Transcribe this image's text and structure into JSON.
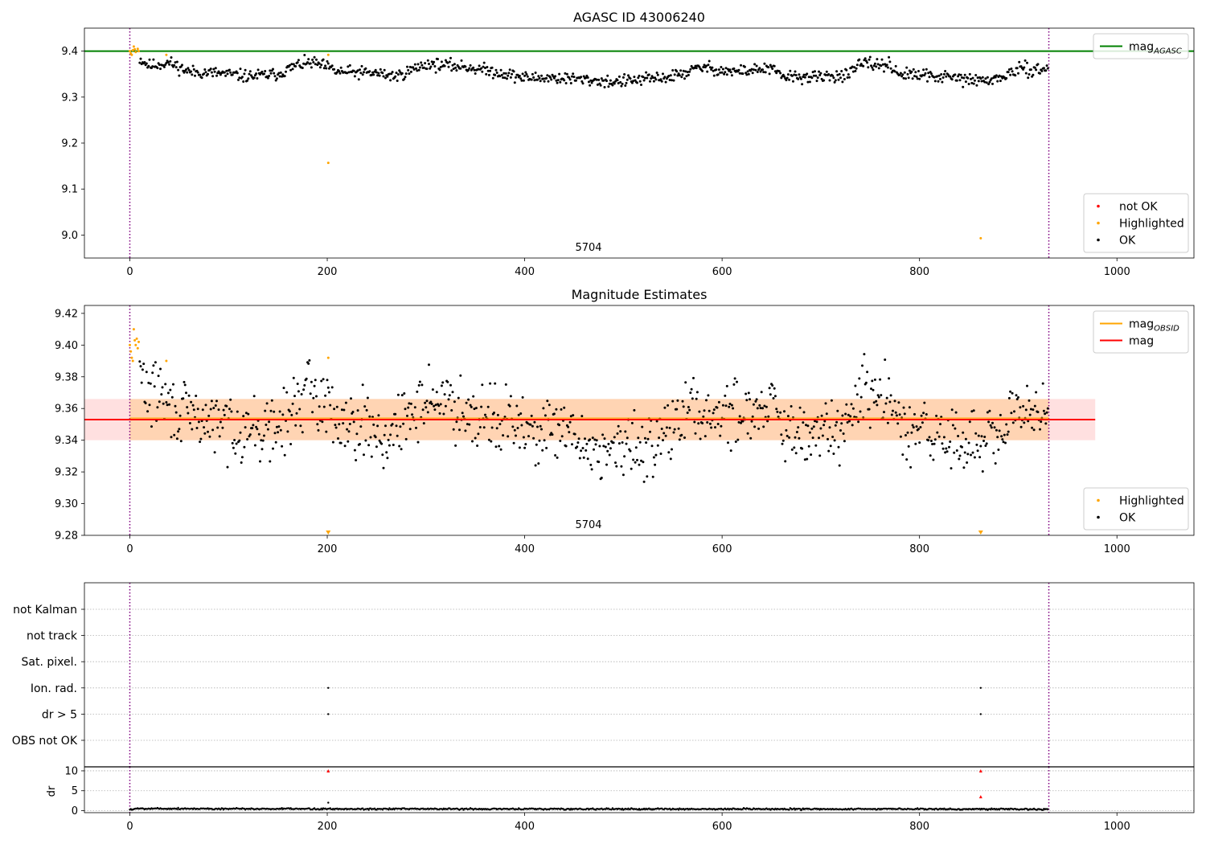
{
  "chart_data": [
    {
      "type": "scatter",
      "title": "AGASC ID 43006240",
      "xlim": [
        -46,
        1078
      ],
      "ylim": [
        8.95,
        9.45
      ],
      "xticks": [
        0,
        200,
        400,
        600,
        800,
        1000
      ],
      "yticks": [
        9.0,
        9.1,
        9.2,
        9.3,
        9.4
      ],
      "ytick_labels": [
        "9.0",
        "9.1",
        "9.2",
        "9.3",
        "9.4"
      ],
      "hlines": [
        {
          "name": "mag_AGASC",
          "y": 9.4,
          "color": "#008000"
        }
      ],
      "vlines": [
        0,
        931
      ],
      "annotation": "5704",
      "legends": [
        {
          "position": "upper right",
          "entries": [
            {
              "label": "mag",
              "sub": "AGASC",
              "kind": "line",
              "color": "#008000"
            }
          ]
        },
        {
          "position": "lower right",
          "entries": [
            {
              "label": "not OK",
              "kind": "point",
              "color": "#ff0000"
            },
            {
              "label": "Highlighted",
              "kind": "point",
              "color": "#ffa500"
            },
            {
              "label": "OK",
              "kind": "point",
              "color": "#000000"
            }
          ]
        }
      ],
      "series": [
        {
          "name": "Highlighted",
          "color": "#ffa500",
          "points": [
            [
              0,
              9.4
            ],
            [
              1,
              9.395
            ],
            [
              2,
              9.392
            ],
            [
              3,
              9.402
            ],
            [
              4,
              9.41
            ],
            [
              5,
              9.404
            ],
            [
              6,
              9.398
            ],
            [
              8,
              9.405
            ],
            [
              9,
              9.4
            ],
            [
              37,
              9.392
            ],
            [
              201,
              9.392
            ],
            [
              201,
              9.157
            ],
            [
              862,
              8.993
            ]
          ]
        },
        {
          "name": "OK",
          "color": "#000000",
          "segments": [
            {
              "from": 10,
              "to": 930,
              "step": 1,
              "knots": [
                [
                  10,
                  9.383
                ],
                [
                  20,
                  9.368
                ],
                [
                  40,
                  9.375
                ],
                [
                  60,
                  9.355
                ],
                [
                  90,
                  9.352
                ],
                [
                  120,
                  9.345
                ],
                [
                  150,
                  9.35
                ],
                [
                  170,
                  9.37
                ],
                [
                  185,
                  9.375
                ],
                [
                  200,
                  9.365
                ],
                [
                  210,
                  9.355
                ],
                [
                  250,
                  9.352
                ],
                [
                  270,
                  9.345
                ],
                [
                  300,
                  9.372
                ],
                [
                  340,
                  9.366
                ],
                [
                  370,
                  9.355
                ],
                [
                  400,
                  9.342
                ],
                [
                  430,
                  9.342
                ],
                [
                  460,
                  9.338
                ],
                [
                  490,
                  9.333
                ],
                [
                  520,
                  9.338
                ],
                [
                  550,
                  9.345
                ],
                [
                  580,
                  9.365
                ],
                [
                  610,
                  9.355
                ],
                [
                  650,
                  9.362
                ],
                [
                  660,
                  9.345
                ],
                [
                  700,
                  9.343
                ],
                [
                  730,
                  9.35
                ],
                [
                  740,
                  9.372
                ],
                [
                  770,
                  9.37
                ],
                [
                  780,
                  9.35
                ],
                [
                  830,
                  9.343
                ],
                [
                  860,
                  9.335
                ],
                [
                  880,
                  9.34
                ],
                [
                  900,
                  9.36
                ],
                [
                  930,
                  9.36
                ]
              ],
              "jitter": 0.01,
              "seed": 11
            }
          ]
        }
      ]
    },
    {
      "type": "scatter",
      "title": "Magnitude Estimates",
      "xlim": [
        -46,
        1078
      ],
      "ylim": [
        9.28,
        9.425
      ],
      "xticks": [
        0,
        200,
        400,
        600,
        800,
        1000
      ],
      "yticks": [
        9.28,
        9.3,
        9.32,
        9.34,
        9.36,
        9.38,
        9.4,
        9.42
      ],
      "ytick_labels": [
        "9.28",
        "9.30",
        "9.32",
        "9.34",
        "9.36",
        "9.38",
        "9.40",
        "9.42"
      ],
      "hlines": [
        {
          "name": "mag",
          "y": 9.353,
          "color": "#ff0000"
        }
      ],
      "bands": [
        {
          "x0": -46,
          "x1": 978,
          "y0": 9.34,
          "y1": 9.366,
          "color": "#ff0000",
          "opacity": 0.12
        },
        {
          "x0": 0,
          "x1": 931,
          "y0": 9.34,
          "y1": 9.366,
          "color": "#ffa500",
          "opacity": 0.2
        }
      ],
      "obsid_line": {
        "name": "mag_OBSID",
        "y": 9.354,
        "x0": 0,
        "x1": 931,
        "color": "#ffa500"
      },
      "vlines": [
        0,
        931
      ],
      "annotation": "5704",
      "legends": [
        {
          "position": "upper right",
          "entries": [
            {
              "label": "mag",
              "sub": "OBSID",
              "kind": "line",
              "color": "#ffa500"
            },
            {
              "label": "mag",
              "kind": "line",
              "color": "#ff0000"
            }
          ]
        },
        {
          "position": "lower right",
          "entries": [
            {
              "label": "Highlighted",
              "kind": "point",
              "color": "#ffa500"
            },
            {
              "label": "OK",
              "kind": "point",
              "color": "#000000"
            }
          ]
        }
      ],
      "series": [
        {
          "name": "Highlighted",
          "color": "#ffa500",
          "points": [
            [
              0,
              9.4
            ],
            [
              1,
              9.396
            ],
            [
              2,
              9.392
            ],
            [
              3,
              9.39
            ],
            [
              4,
              9.41
            ],
            [
              5,
              9.403
            ],
            [
              6,
              9.4
            ],
            [
              7,
              9.404
            ],
            [
              8,
              9.398
            ],
            [
              9,
              9.402
            ],
            [
              37,
              9.39
            ],
            [
              201,
              9.392
            ]
          ],
          "offscale": [
            [
              201,
              9.281
            ],
            [
              862,
              9.281
            ]
          ]
        },
        {
          "name": "OK",
          "color": "#000000",
          "segments": [
            {
              "from": 10,
              "to": 930,
              "step": 1,
              "knots": [
                [
                  10,
                  9.383
                ],
                [
                  20,
                  9.368
                ],
                [
                  30,
                  9.372
                ],
                [
                  40,
                  9.36
                ],
                [
                  60,
                  9.355
                ],
                [
                  90,
                  9.35
                ],
                [
                  120,
                  9.348
                ],
                [
                  140,
                  9.345
                ],
                [
                  160,
                  9.352
                ],
                [
                  170,
                  9.365
                ],
                [
                  180,
                  9.372
                ],
                [
                  200,
                  9.362
                ],
                [
                  210,
                  9.355
                ],
                [
                  240,
                  9.35
                ],
                [
                  260,
                  9.34
                ],
                [
                  280,
                  9.352
                ],
                [
                  300,
                  9.368
                ],
                [
                  340,
                  9.36
                ],
                [
                  370,
                  9.355
                ],
                [
                  400,
                  9.346
                ],
                [
                  440,
                  9.344
                ],
                [
                  470,
                  9.335
                ],
                [
                  490,
                  9.333
                ],
                [
                  520,
                  9.336
                ],
                [
                  550,
                  9.348
                ],
                [
                  570,
                  9.36
                ],
                [
                  600,
                  9.355
                ],
                [
                  640,
                  9.362
                ],
                [
                  650,
                  9.365
                ],
                [
                  660,
                  9.345
                ],
                [
                  680,
                  9.34
                ],
                [
                  700,
                  9.345
                ],
                [
                  730,
                  9.35
                ],
                [
                  740,
                  9.37
                ],
                [
                  770,
                  9.365
                ],
                [
                  780,
                  9.345
                ],
                [
                  820,
                  9.343
                ],
                [
                  850,
                  9.338
                ],
                [
                  880,
                  9.34
                ],
                [
                  900,
                  9.358
                ],
                [
                  930,
                  9.36
                ]
              ],
              "jitter": 0.015,
              "seed": 29
            }
          ]
        }
      ]
    },
    {
      "type": "scatter",
      "title": "",
      "xlim": [
        -46,
        1078
      ],
      "categories": [
        "not Kalman",
        "not track",
        "Sat. pixel.",
        "Ion. rad.",
        "dr > 5",
        "OBS not OK"
      ],
      "flag_points": [
        {
          "category": "Ion. rad.",
          "x": [
            201,
            862
          ]
        },
        {
          "category": "dr > 5",
          "x": [
            201,
            862
          ]
        }
      ],
      "vlines": [
        0,
        931
      ]
    },
    {
      "type": "scatter",
      "title": "",
      "ylabel": "dr",
      "xlim": [
        -46,
        1078
      ],
      "ylim": [
        -0.5,
        11
      ],
      "xticks": [
        0,
        200,
        400,
        600,
        800,
        1000
      ],
      "yticks": [
        0,
        5,
        10
      ],
      "ytick_labels": [
        "0",
        "5",
        "10"
      ],
      "vlines": [
        0,
        931
      ],
      "series": [
        {
          "name": "OK",
          "color": "#000000",
          "segments": [
            {
              "from": 0,
              "to": 930,
              "step": 1,
              "knots": [
                [
                  0,
                  0.3
                ],
                [
                  10,
                  0.55
                ],
                [
                  100,
                  0.45
                ],
                [
                  500,
                  0.4
                ],
                [
                  930,
                  0.4
                ]
              ],
              "jitter": 0.15,
              "seed": 5
            }
          ],
          "points": [
            [
              201,
              2.0
            ]
          ]
        },
        {
          "name": "not OK",
          "color": "#ff0000",
          "points": [
            [
              201,
              10.0
            ],
            [
              862,
              10.0
            ],
            [
              862,
              3.5
            ]
          ]
        }
      ]
    }
  ]
}
